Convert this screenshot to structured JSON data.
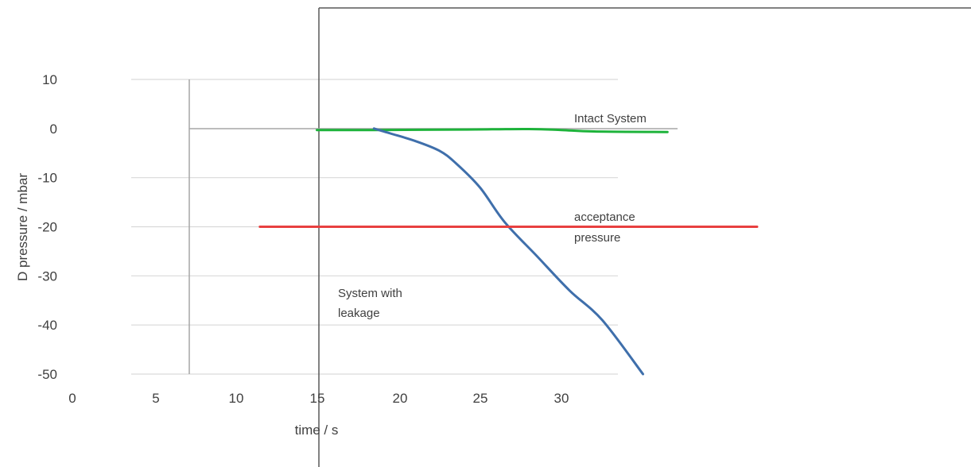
{
  "chart_data": {
    "type": "line",
    "ylabel": "D pressure  / mbar",
    "xlabel": "time / s",
    "y_ticks": [
      "10",
      "0",
      "-10",
      "-20",
      "-30",
      "-40",
      "-50"
    ],
    "x_ticks": [
      "0",
      "5",
      "10",
      "15",
      "20",
      "25",
      "30"
    ],
    "ylim": [
      -50,
      10
    ],
    "grid": "horizontal",
    "series": [
      {
        "name": "Intact System",
        "color": "#1db33a",
        "x": [
          15.0,
          18.5,
          24,
          28,
          30,
          32,
          36.5
        ],
        "y": [
          -0.3,
          -0.3,
          -0.2,
          -0.1,
          -0.3,
          -0.6,
          -0.7
        ]
      },
      {
        "name": "System with leakage",
        "color": "#3f6fab",
        "x": [
          18.5,
          19.5,
          21,
          22.5,
          23.5,
          25,
          26.5,
          28.5,
          30.5,
          32.5,
          35
        ],
        "y": [
          0,
          -1,
          -2.5,
          -4.5,
          -7,
          -12,
          -19,
          -26,
          -33,
          -39,
          -50
        ]
      },
      {
        "name": "acceptance pressure",
        "color": "#e84040",
        "x": [
          11.5,
          42
        ],
        "y": [
          -20,
          -20
        ]
      }
    ],
    "annotations": {
      "intact": "Intact System",
      "acceptance_line1": "acceptance",
      "acceptance_line2": "pressure",
      "leakage_line1": "System with",
      "leakage_line2": "leakage"
    }
  }
}
